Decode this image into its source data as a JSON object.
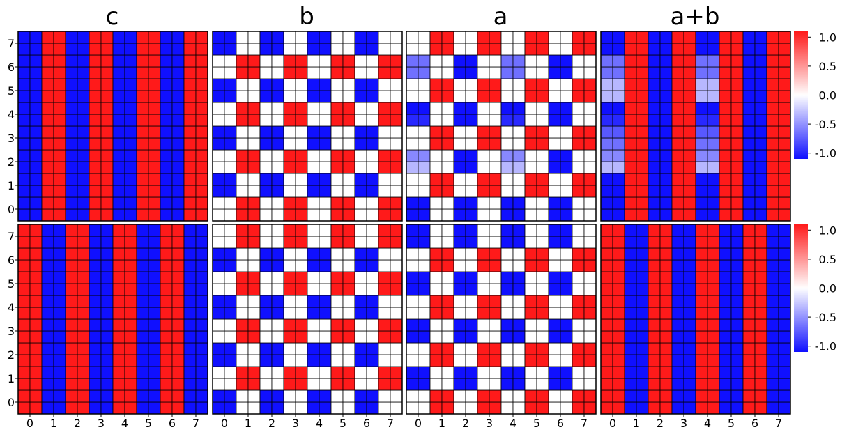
{
  "chart_data": {
    "type": "heatmap",
    "panel_titles": [
      "c",
      "b",
      "a",
      "a+b"
    ],
    "x_ticks": [
      "0",
      "1",
      "2",
      "3",
      "4",
      "5",
      "6",
      "7"
    ],
    "y_ticks": [
      "0",
      "1",
      "2",
      "3",
      "4",
      "5",
      "6",
      "7"
    ],
    "grid_size": 16,
    "cell_tick_span": 0.5,
    "color_scale": {
      "min": -1.1,
      "max": 1.1,
      "ticks": [
        "1.0",
        "0.5",
        "0.0",
        "-0.5",
        "-1.0"
      ],
      "tick_values": [
        1.0,
        0.5,
        0.0,
        -0.5,
        -1.0
      ],
      "neg_color": "#1010ff",
      "mid_color": "#ffffff",
      "pos_color": "#ff1a1a"
    },
    "rows": [
      {
        "name": "top",
        "panels": [
          {
            "title": "c",
            "pattern": "stripes",
            "sign_first_column": -1
          },
          {
            "title": "b",
            "pattern": "checker",
            "parity": 1,
            "fade_columns": []
          },
          {
            "title": "a",
            "pattern": "checker",
            "parity": 0,
            "fade_columns": [
              0,
              4
            ],
            "fade_values": [
              -1.0,
              -1.0,
              -1.0,
              -1.0,
              -0.3,
              -0.5,
              -0.6,
              -0.7,
              -0.9,
              -1.0,
              -0.3,
              -0.3,
              -0.6,
              -0.6,
              -1.0,
              -1.0
            ]
          },
          {
            "title": "a+b",
            "pattern": "stripes",
            "sign_first_column": -1,
            "fade_columns": [
              0,
              4
            ],
            "fade_values": [
              -1.0,
              -1.0,
              -1.0,
              -1.0,
              -0.3,
              -0.5,
              -0.6,
              -0.7,
              -0.9,
              -1.0,
              -0.3,
              -0.3,
              -0.6,
              -0.6,
              -1.0,
              -1.0
            ]
          }
        ]
      },
      {
        "name": "bottom",
        "panels": [
          {
            "title": "c",
            "pattern": "stripes",
            "sign_first_column": 1
          },
          {
            "title": "b",
            "pattern": "checker",
            "parity": 0,
            "fade_columns": []
          },
          {
            "title": "a",
            "pattern": "checker",
            "parity": 1,
            "fade_columns": []
          },
          {
            "title": "a+b",
            "pattern": "stripes",
            "sign_first_column": 1
          }
        ]
      }
    ]
  }
}
